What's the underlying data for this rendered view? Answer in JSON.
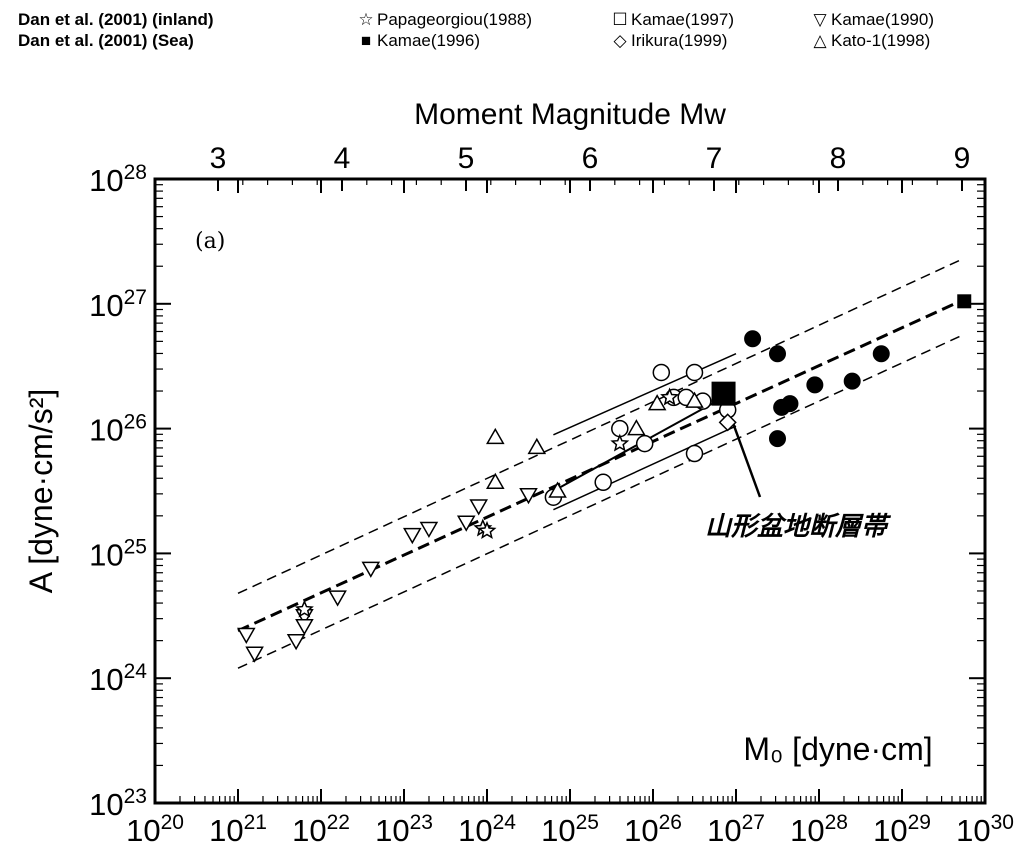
{
  "legend": {
    "left_labels": [
      "Dan et al. (2001) (inland)",
      "Dan et al. (2001) (Sea)"
    ],
    "items": [
      {
        "symbol": "☆",
        "label": "Papageorgiou(1988)"
      },
      {
        "symbol": "☐",
        "label": "Kamae(1997)"
      },
      {
        "symbol": "▽",
        "label": "Kamae(1990)"
      },
      {
        "symbol": "■",
        "label": "Kamae(1996)"
      },
      {
        "symbol": "◇",
        "label": "Irikura(1999)"
      },
      {
        "symbol": "△",
        "label": "Kato-1(1998)"
      }
    ]
  },
  "chart_data": {
    "type": "scatter",
    "panel_label": "(a)",
    "title": "",
    "xlabel": "M₀ [dyne·cm]",
    "ylabel": "A [dyne·cm/s²]",
    "top_axis_label": "Moment Magnitude Mw",
    "x_scale": "log",
    "y_scale": "log",
    "xlim_exp": [
      20,
      30
    ],
    "ylim_exp": [
      23,
      28
    ],
    "x_ticks_exp": [
      20,
      21,
      22,
      23,
      24,
      25,
      26,
      27,
      28,
      29,
      30
    ],
    "y_ticks_exp": [
      23,
      24,
      25,
      26,
      27,
      28
    ],
    "top_ticks": [
      3,
      4,
      5,
      6,
      7,
      8,
      9
    ],
    "annotation": "山形盆地断層帯",
    "lines": {
      "center_dashed": [
        [
          21.0,
          24.38
        ],
        [
          29.7,
          27.02
        ]
      ],
      "upper_dashed": [
        [
          21.0,
          24.68
        ],
        [
          29.7,
          27.35
        ]
      ],
      "lower_dashed": [
        [
          21.0,
          24.08
        ],
        [
          29.7,
          26.74
        ]
      ],
      "solid_upper": [
        [
          24.8,
          25.95
        ],
        [
          27.0,
          26.6
        ]
      ],
      "solid_lower": [
        [
          24.8,
          25.35
        ],
        [
          27.0,
          26.02
        ]
      ],
      "solid_segment": [
        [
          24.8,
          25.5
        ],
        [
          26.85,
          26.25
        ]
      ]
    },
    "series": [
      {
        "marker": "circle-open",
        "points": [
          [
            24.8,
            25.45
          ],
          [
            25.6,
            26.0
          ],
          [
            25.9,
            25.88
          ],
          [
            26.1,
            26.45
          ],
          [
            26.25,
            26.25
          ],
          [
            26.4,
            26.25
          ],
          [
            26.5,
            26.45
          ],
          [
            26.5,
            25.8
          ],
          [
            26.6,
            26.22
          ],
          [
            25.4,
            25.57
          ],
          [
            26.9,
            26.15
          ]
        ]
      },
      {
        "marker": "circle-filled",
        "points": [
          [
            27.2,
            26.72
          ],
          [
            27.5,
            26.6
          ],
          [
            27.55,
            26.17
          ],
          [
            27.65,
            26.2
          ],
          [
            27.5,
            25.92
          ],
          [
            27.95,
            26.35
          ],
          [
            28.4,
            26.38
          ],
          [
            28.75,
            26.6
          ]
        ]
      },
      {
        "marker": "triangle-up",
        "points": [
          [
            24.1,
            25.93
          ],
          [
            24.1,
            25.57
          ],
          [
            24.6,
            25.85
          ],
          [
            24.85,
            25.5
          ],
          [
            25.8,
            26.0
          ],
          [
            26.05,
            26.2
          ],
          [
            26.5,
            26.22
          ]
        ]
      },
      {
        "marker": "triangle-down",
        "points": [
          [
            21.1,
            24.35
          ],
          [
            21.2,
            24.2
          ],
          [
            21.7,
            24.3
          ],
          [
            21.8,
            24.5
          ],
          [
            21.8,
            24.42
          ],
          [
            22.2,
            24.65
          ],
          [
            22.6,
            24.88
          ],
          [
            23.1,
            25.15
          ],
          [
            23.3,
            25.2
          ],
          [
            23.75,
            25.25
          ],
          [
            23.9,
            25.38
          ],
          [
            24.5,
            25.47
          ]
        ]
      },
      {
        "marker": "star",
        "points": [
          [
            21.8,
            24.55
          ],
          [
            23.95,
            25.2
          ],
          [
            24.0,
            25.18
          ],
          [
            25.6,
            25.88
          ],
          [
            26.2,
            26.25
          ]
        ]
      },
      {
        "marker": "diamond",
        "points": [
          [
            26.9,
            26.05
          ]
        ]
      },
      {
        "marker": "square-filled",
        "points": [
          [
            26.85,
            26.28
          ],
          [
            29.75,
            27.02
          ]
        ]
      }
    ]
  }
}
